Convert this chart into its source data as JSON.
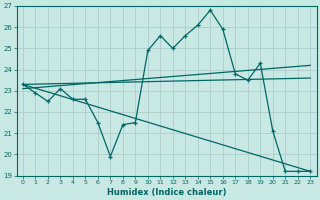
{
  "xlabel": "Humidex (Indice chaleur)",
  "xlim": [
    -0.5,
    23.5
  ],
  "ylim": [
    19,
    27
  ],
  "yticks": [
    19,
    20,
    21,
    22,
    23,
    24,
    25,
    26,
    27
  ],
  "xticks": [
    0,
    1,
    2,
    3,
    4,
    5,
    6,
    7,
    8,
    9,
    10,
    11,
    12,
    13,
    14,
    15,
    16,
    17,
    18,
    19,
    20,
    21,
    22,
    23
  ],
  "bg_color": "#c8e8e4",
  "line_color": "#006666",
  "grid_color": "#b0cccc",
  "line1_x": [
    0,
    1,
    2,
    3,
    4,
    5,
    6,
    7,
    8,
    9,
    10,
    11,
    12,
    13,
    14,
    15,
    16,
    17,
    18,
    19,
    20,
    21,
    22,
    23
  ],
  "line1_y": [
    23.3,
    22.9,
    22.5,
    23.1,
    22.6,
    22.6,
    21.5,
    19.9,
    21.4,
    21.5,
    24.9,
    25.6,
    25.0,
    25.6,
    26.1,
    26.8,
    25.9,
    23.8,
    23.5,
    24.3,
    21.1,
    19.2,
    19.2,
    19.2
  ],
  "line2_x": [
    0,
    23
  ],
  "line2_y": [
    23.3,
    23.6
  ],
  "line3_x": [
    0,
    23
  ],
  "line3_y": [
    23.3,
    19.2
  ],
  "line4_x": [
    0,
    23
  ],
  "line4_y": [
    23.1,
    24.2
  ]
}
